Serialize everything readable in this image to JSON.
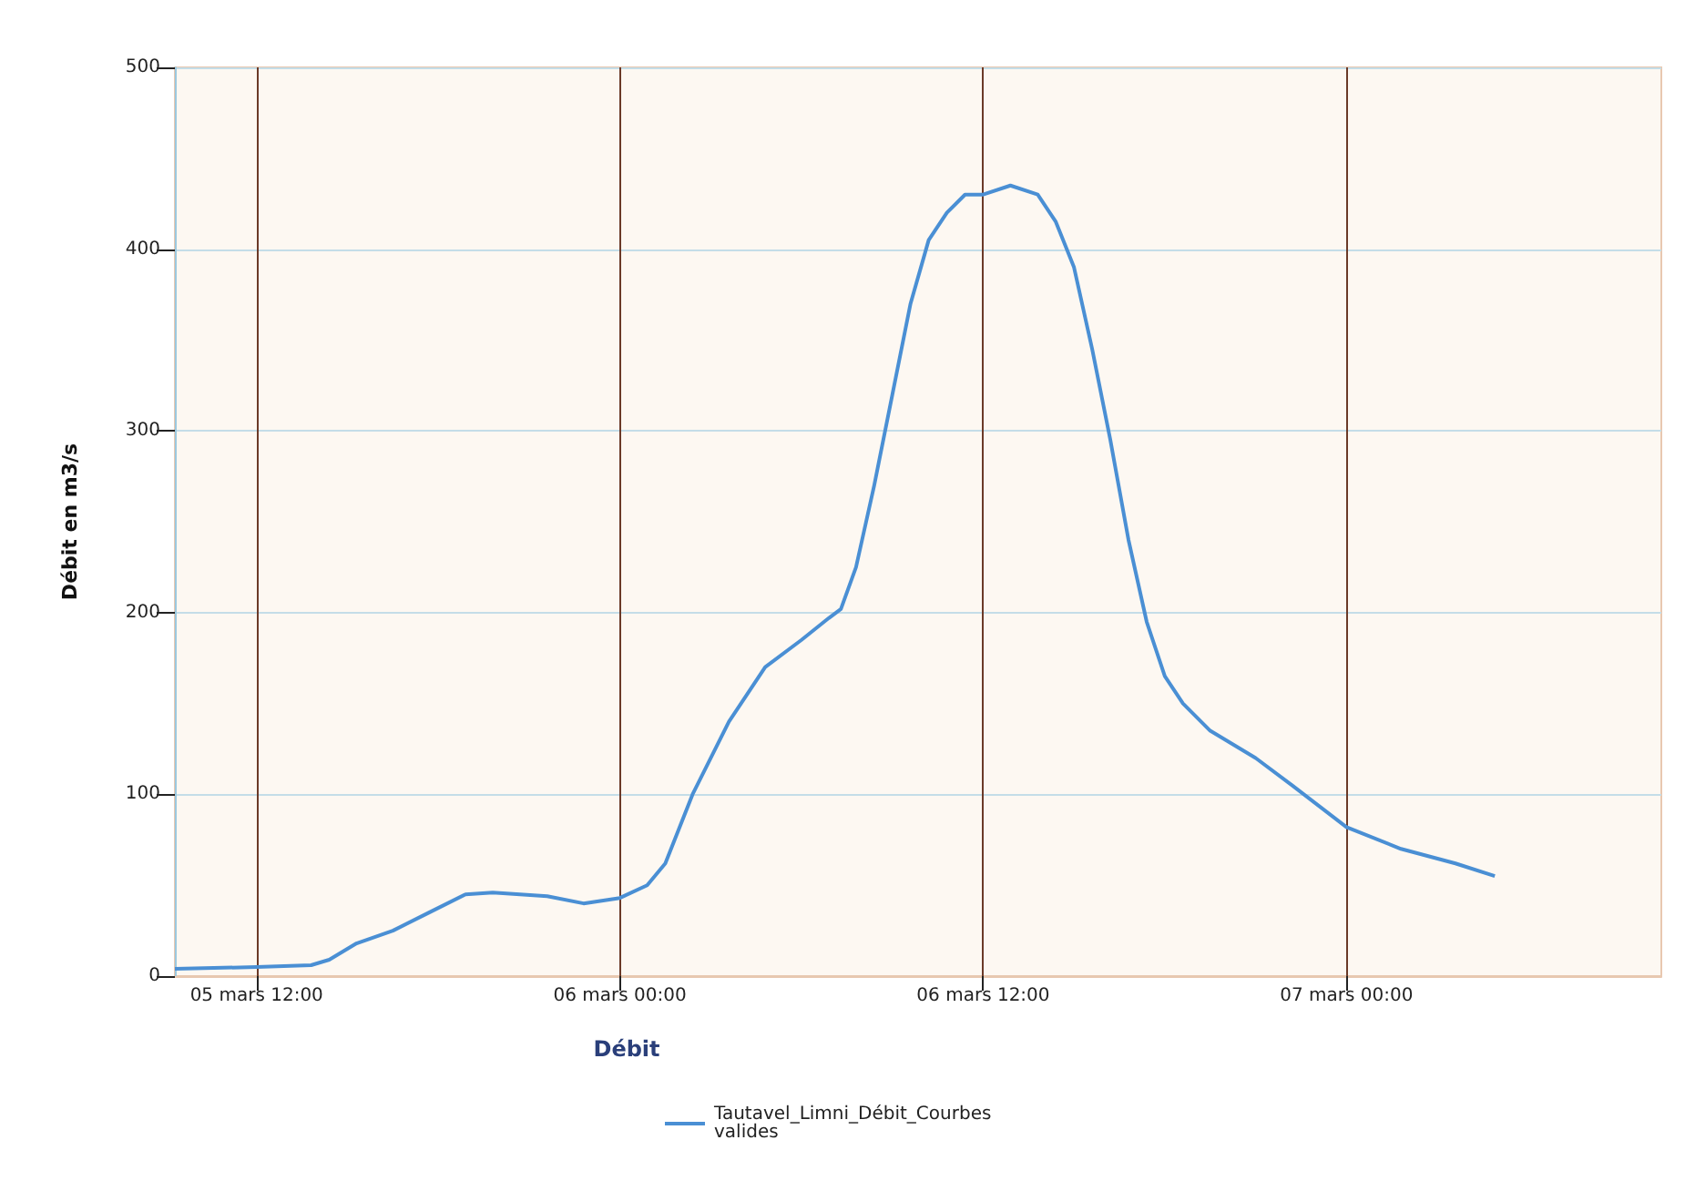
{
  "chart_data": {
    "type": "line",
    "xlabel": "Débit",
    "ylabel": "Débit en m3/s",
    "x": [
      "--03-05T09:18",
      "--03-05T12:00",
      "--03-05T13:48",
      "--03-05T14:24",
      "--03-05T15:18",
      "--03-05T16:30",
      "--03-05T17:42",
      "--03-05T18:54",
      "--03-05T19:48",
      "--03-05T21:36",
      "--03-05T22:48",
      "--03-06T00:00",
      "--03-06T00:54",
      "--03-06T01:30",
      "--03-06T02:24",
      "--03-06T03:36",
      "--03-06T04:48",
      "--03-06T06:00",
      "--03-06T06:54",
      "--03-06T07:18",
      "--03-06T07:48",
      "--03-06T08:24",
      "--03-06T09:00",
      "--03-06T09:36",
      "--03-06T10:12",
      "--03-06T10:48",
      "--03-06T11:24",
      "--03-06T12:00",
      "--03-06T12:54",
      "--03-06T13:48",
      "--03-06T14:24",
      "--03-06T15:00",
      "--03-06T15:36",
      "--03-06T16:12",
      "--03-06T16:48",
      "--03-06T17:24",
      "--03-06T18:00",
      "--03-06T18:36",
      "--03-06T19:30",
      "--03-06T21:00",
      "--03-06T22:12",
      "--03-07T00:00",
      "--03-07T01:48",
      "--03-07T03:36",
      "--03-07T04:54"
    ],
    "series": [
      {
        "name": "Tautavel_Limni_Débit_Courbes valides",
        "color": "#4a8fd4",
        "values": [
          4,
          5,
          6,
          9,
          18,
          25,
          35,
          45,
          46,
          44,
          40,
          43,
          50,
          62,
          100,
          140,
          170,
          185,
          197,
          202,
          225,
          270,
          320,
          370,
          405,
          420,
          430,
          430,
          435,
          430,
          415,
          390,
          345,
          295,
          240,
          195,
          165,
          150,
          135,
          120,
          105,
          82,
          70,
          62,
          55
        ]
      }
    ],
    "xlim": [
      "--03-05T09:18",
      "--03-07T10:24"
    ],
    "xticks": [
      {
        "value": "--03-05T12:00",
        "label": "05 mars 12:00"
      },
      {
        "value": "--03-06T00:00",
        "label": "06 mars 00:00"
      },
      {
        "value": "--03-06T12:00",
        "label": "06 mars 12:00"
      },
      {
        "value": "--03-07T00:00",
        "label": "07 mars 00:00"
      }
    ],
    "ylim": [
      0,
      500
    ],
    "yticks": [
      0,
      100,
      200,
      300,
      400,
      500
    ],
    "grid": true,
    "legend": "bottom",
    "marker": "none",
    "line_style": "solid"
  }
}
